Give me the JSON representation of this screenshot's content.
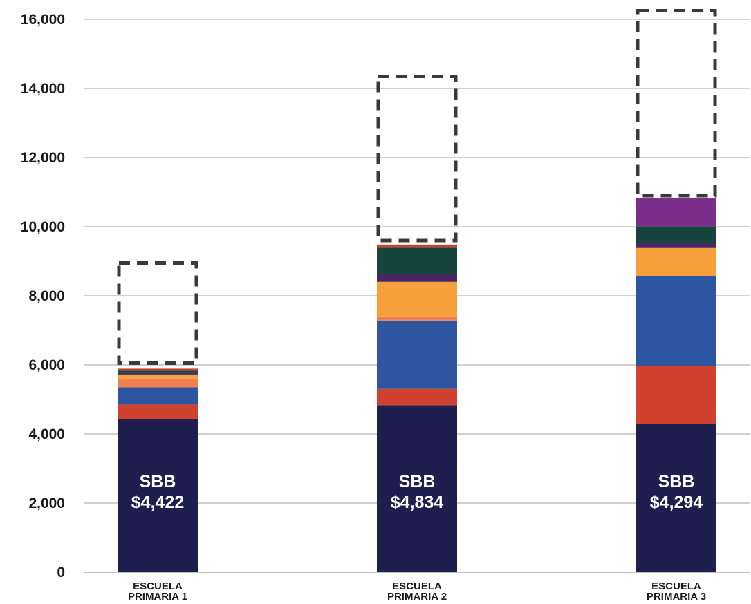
{
  "chart_data": {
    "type": "bar",
    "stacked": true,
    "categories": [
      [
        "ESCUELA",
        "PRIMARIA 1"
      ],
      [
        "ESCUELA",
        "PRIMARIA 2"
      ],
      [
        "ESCUELA",
        "PRIMARIA 3"
      ]
    ],
    "ylim": [
      0,
      16000
    ],
    "yticks": [
      0,
      2000,
      4000,
      6000,
      8000,
      10000,
      12000,
      14000,
      16000
    ],
    "ytick_labels": [
      "0",
      "2,000",
      "4,000",
      "6,000",
      "8,000",
      "10,000",
      "12,000",
      "14,000",
      "16,000"
    ],
    "grid": true,
    "series": [
      {
        "color": "#1f1f4f",
        "values": [
          4422,
          4834,
          4294
        ]
      },
      {
        "color": "#d14130",
        "values": [
          430,
          470,
          1670
        ]
      },
      {
        "color": "#2e55a0",
        "values": [
          500,
          1980,
          2600
        ]
      },
      {
        "color": "#f07f4f",
        "values": [
          250,
          120,
          0
        ]
      },
      {
        "color": "#f5a03a",
        "values": [
          120,
          1000,
          820
        ]
      },
      {
        "color": "#4a2762",
        "values": [
          40,
          230,
          150
        ]
      },
      {
        "color": "#17453e",
        "values": [
          70,
          760,
          480
        ]
      },
      {
        "color": "#7b2e8a",
        "values": [
          0,
          0,
          820
        ]
      },
      {
        "color": "#c8432f",
        "values": [
          60,
          90,
          0
        ]
      }
    ],
    "bar_labels": [
      [
        "SBB",
        "$4,422"
      ],
      [
        "SBB",
        "$4,834"
      ],
      [
        "SBB",
        "$4,294"
      ]
    ],
    "dashed_outline": {
      "bottom": [
        6050,
        9600,
        10900
      ],
      "top": [
        8950,
        14350,
        16250
      ]
    }
  }
}
